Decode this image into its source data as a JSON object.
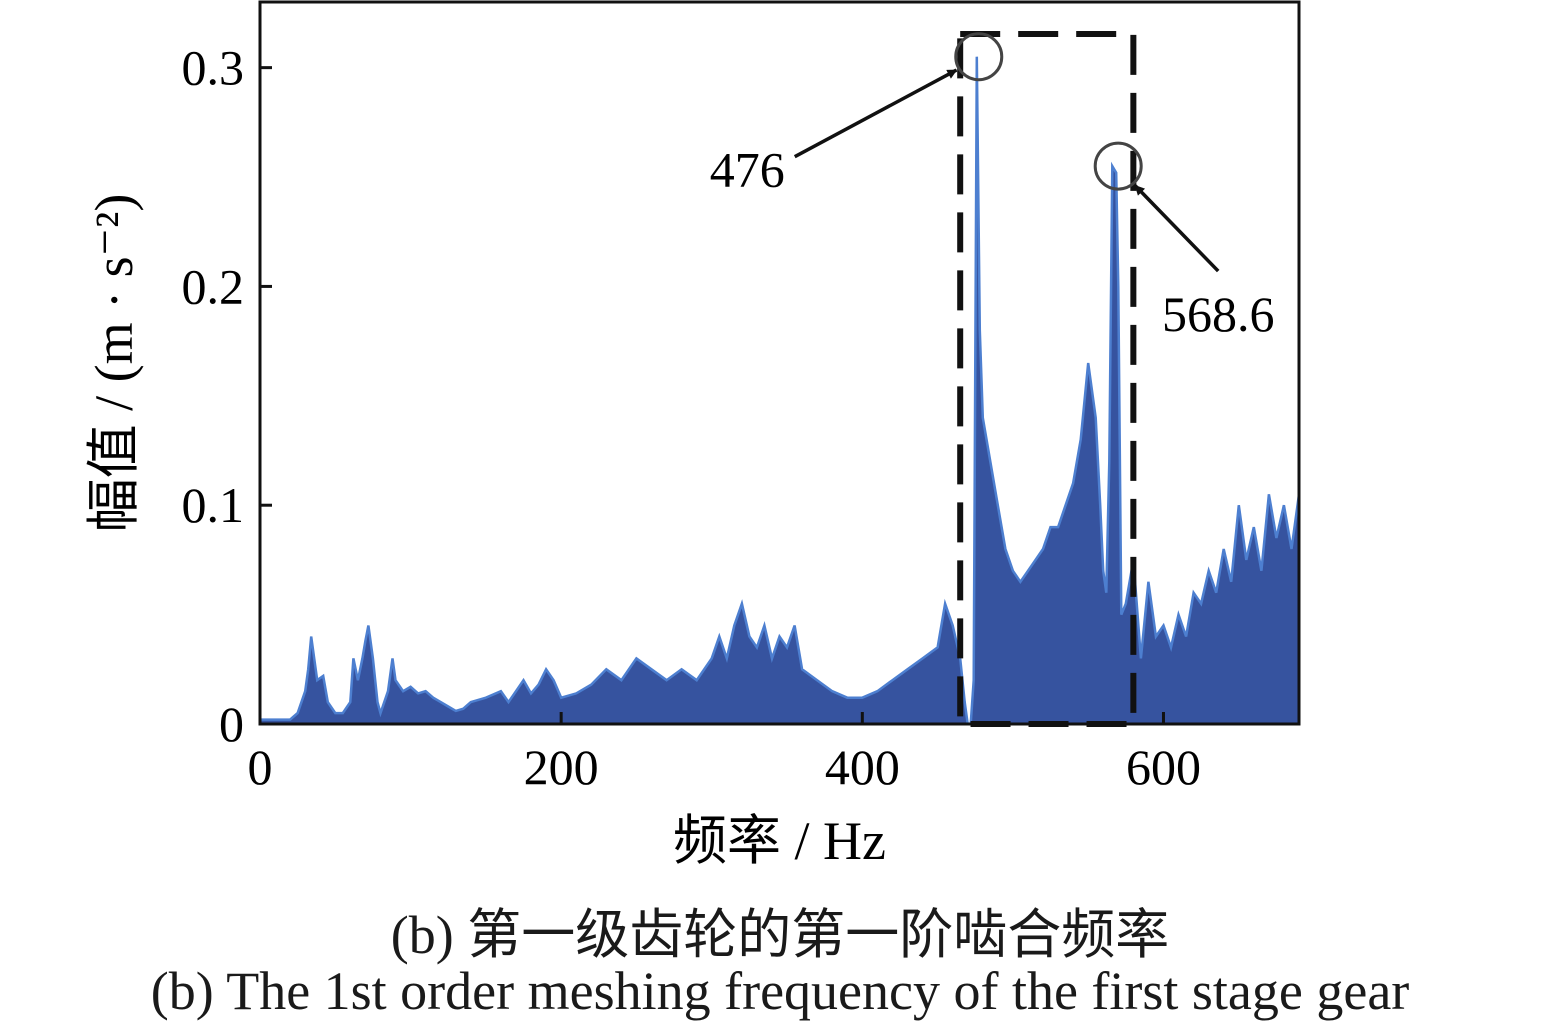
{
  "chart_data": {
    "type": "line",
    "title": "",
    "xlabel": "频率 / Hz",
    "ylabel": "幅值 / (m · s⁻²)",
    "xlim": [
      0,
      690
    ],
    "ylim": [
      0,
      0.33
    ],
    "xticks": [
      0,
      200,
      400,
      600
    ],
    "xtick_labels": [
      "0",
      "200",
      "400",
      "600"
    ],
    "yticks": [
      0,
      0.1,
      0.2,
      0.3
    ],
    "ytick_labels": [
      "0",
      "0.1",
      "0.2",
      "0.3"
    ],
    "grid": false,
    "legend": "none",
    "series": [
      {
        "color": "#2b4a9a",
        "x": [
          0,
          20,
          25,
          30,
          32,
          34,
          36,
          38,
          42,
          45,
          50,
          55,
          60,
          62,
          65,
          68,
          70,
          72,
          75,
          78,
          80,
          85,
          88,
          90,
          95,
          100,
          105,
          110,
          115,
          120,
          125,
          130,
          135,
          140,
          150,
          160,
          165,
          170,
          175,
          180,
          185,
          190,
          195,
          200,
          210,
          220,
          230,
          240,
          250,
          260,
          270,
          280,
          290,
          300,
          305,
          310,
          315,
          320,
          325,
          330,
          335,
          340,
          345,
          350,
          355,
          360,
          370,
          380,
          390,
          400,
          410,
          420,
          430,
          440,
          450,
          455,
          460,
          465,
          468,
          470,
          472,
          474,
          476,
          478,
          480,
          485,
          490,
          495,
          500,
          505,
          510,
          515,
          520,
          525,
          530,
          535,
          540,
          545,
          550,
          555,
          558,
          560,
          562,
          564,
          566,
          568.6,
          570,
          572,
          575,
          580,
          585,
          590,
          595,
          600,
          605,
          610,
          615,
          620,
          625,
          630,
          635,
          640,
          645,
          650,
          655,
          660,
          665,
          670,
          675,
          680,
          685,
          690
        ],
        "y": [
          0.002,
          0.002,
          0.005,
          0.015,
          0.025,
          0.04,
          0.03,
          0.02,
          0.022,
          0.01,
          0.005,
          0.005,
          0.01,
          0.03,
          0.02,
          0.03,
          0.038,
          0.045,
          0.03,
          0.01,
          0.005,
          0.015,
          0.03,
          0.02,
          0.015,
          0.017,
          0.014,
          0.015,
          0.012,
          0.01,
          0.008,
          0.006,
          0.007,
          0.01,
          0.012,
          0.015,
          0.01,
          0.015,
          0.02,
          0.014,
          0.018,
          0.025,
          0.02,
          0.012,
          0.014,
          0.018,
          0.025,
          0.02,
          0.03,
          0.025,
          0.02,
          0.025,
          0.02,
          0.03,
          0.04,
          0.03,
          0.045,
          0.055,
          0.04,
          0.035,
          0.045,
          0.03,
          0.04,
          0.035,
          0.045,
          0.025,
          0.02,
          0.015,
          0.012,
          0.012,
          0.015,
          0.02,
          0.025,
          0.03,
          0.035,
          0.055,
          0.045,
          0.03,
          0.01,
          0.0,
          0.0,
          0.02,
          0.305,
          0.18,
          0.14,
          0.12,
          0.1,
          0.08,
          0.07,
          0.065,
          0.07,
          0.075,
          0.08,
          0.09,
          0.09,
          0.1,
          0.11,
          0.13,
          0.165,
          0.14,
          0.1,
          0.07,
          0.06,
          0.12,
          0.255,
          0.252,
          0.2,
          0.05,
          0.055,
          0.075,
          0.03,
          0.065,
          0.04,
          0.045,
          0.035,
          0.05,
          0.04,
          0.06,
          0.055,
          0.07,
          0.06,
          0.08,
          0.065,
          0.1,
          0.075,
          0.09,
          0.07,
          0.105,
          0.085,
          0.1,
          0.08,
          0.105
        ]
      }
    ],
    "annotations": [
      {
        "text": "476",
        "x": 476,
        "y": 0.305
      },
      {
        "text": "568.6",
        "x": 568.6,
        "y": 0.255
      }
    ],
    "highlight_region": {
      "x": [
        465,
        580
      ],
      "y": [
        0,
        0.33
      ],
      "style": "dashed"
    }
  },
  "captions": {
    "cn": "(b)  第一级齿轮的第一阶啮合频率",
    "en": "(b)  The 1st order meshing frequency of the first stage gear"
  }
}
